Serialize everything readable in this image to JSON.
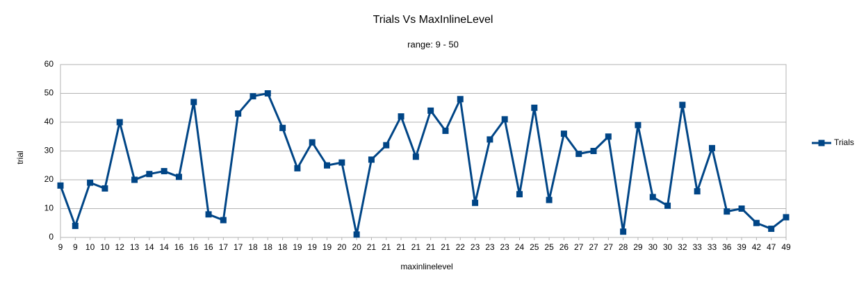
{
  "chart_data": {
    "type": "line",
    "title": "Trials Vs MaxInlineLevel",
    "subtitle": "range: 9 - 50",
    "x_label": "maxinlinelevel",
    "y_label": "trial",
    "categories": [
      "9",
      "9",
      "10",
      "10",
      "12",
      "13",
      "14",
      "14",
      "16",
      "16",
      "16",
      "17",
      "17",
      "18",
      "18",
      "18",
      "19",
      "19",
      "19",
      "20",
      "20",
      "21",
      "21",
      "21",
      "21",
      "21",
      "21",
      "22",
      "23",
      "23",
      "23",
      "24",
      "25",
      "25",
      "26",
      "27",
      "27",
      "27",
      "28",
      "29",
      "30",
      "30",
      "32",
      "33",
      "33",
      "36",
      "39",
      "42",
      "47",
      "49"
    ],
    "series": [
      {
        "name": "Trials",
        "color": "#004586",
        "values": [
          18,
          4,
          19,
          17,
          40,
          20,
          22,
          23,
          21,
          47,
          8,
          6,
          43,
          49,
          50,
          38,
          24,
          33,
          25,
          26,
          1,
          27,
          32,
          42,
          28,
          44,
          37,
          48,
          12,
          34,
          41,
          15,
          45,
          13,
          36,
          29,
          30,
          35,
          2,
          39,
          14,
          11,
          46,
          16,
          31,
          9,
          10,
          5,
          3,
          7
        ]
      }
    ],
    "ylim": [
      0,
      60
    ],
    "yticks": [
      0,
      10,
      20,
      30,
      40,
      50,
      60
    ],
    "grid": true,
    "legend": "right"
  }
}
